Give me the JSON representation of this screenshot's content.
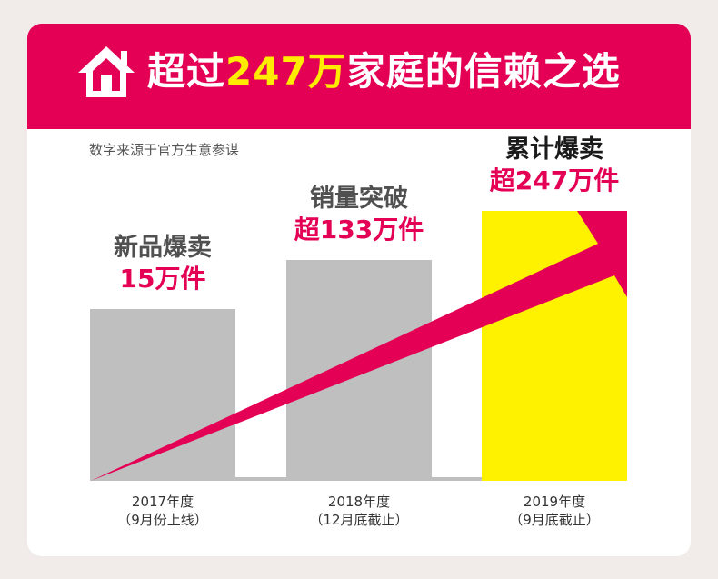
{
  "banner": {
    "title_prefix": "超过",
    "title_highlight": "247万",
    "title_suffix": "家庭的信赖之选",
    "icon": "house-icon"
  },
  "source_note": "数字来源于官方生意参谋",
  "colors": {
    "brand": "#e40054",
    "highlight": "#ffec00",
    "bar_gray": "#bfbfbf",
    "bar_yellow": "#fff200"
  },
  "chart_data": {
    "type": "bar",
    "categories": [
      "2017年度",
      "2018年度",
      "2019年度"
    ],
    "category_notes": [
      "（9月份上线）",
      "（12月底截止）",
      "（9月底截止）"
    ],
    "values": [
      15,
      133,
      247
    ],
    "unit": "万件",
    "bar_labels": [
      {
        "line1": "新品爆卖",
        "line2": "15万件"
      },
      {
        "line1": "销量突破",
        "line2": "超133万件"
      },
      {
        "line1": "累计爆卖",
        "line2": "超247万件"
      }
    ],
    "trend_arrow": true
  }
}
